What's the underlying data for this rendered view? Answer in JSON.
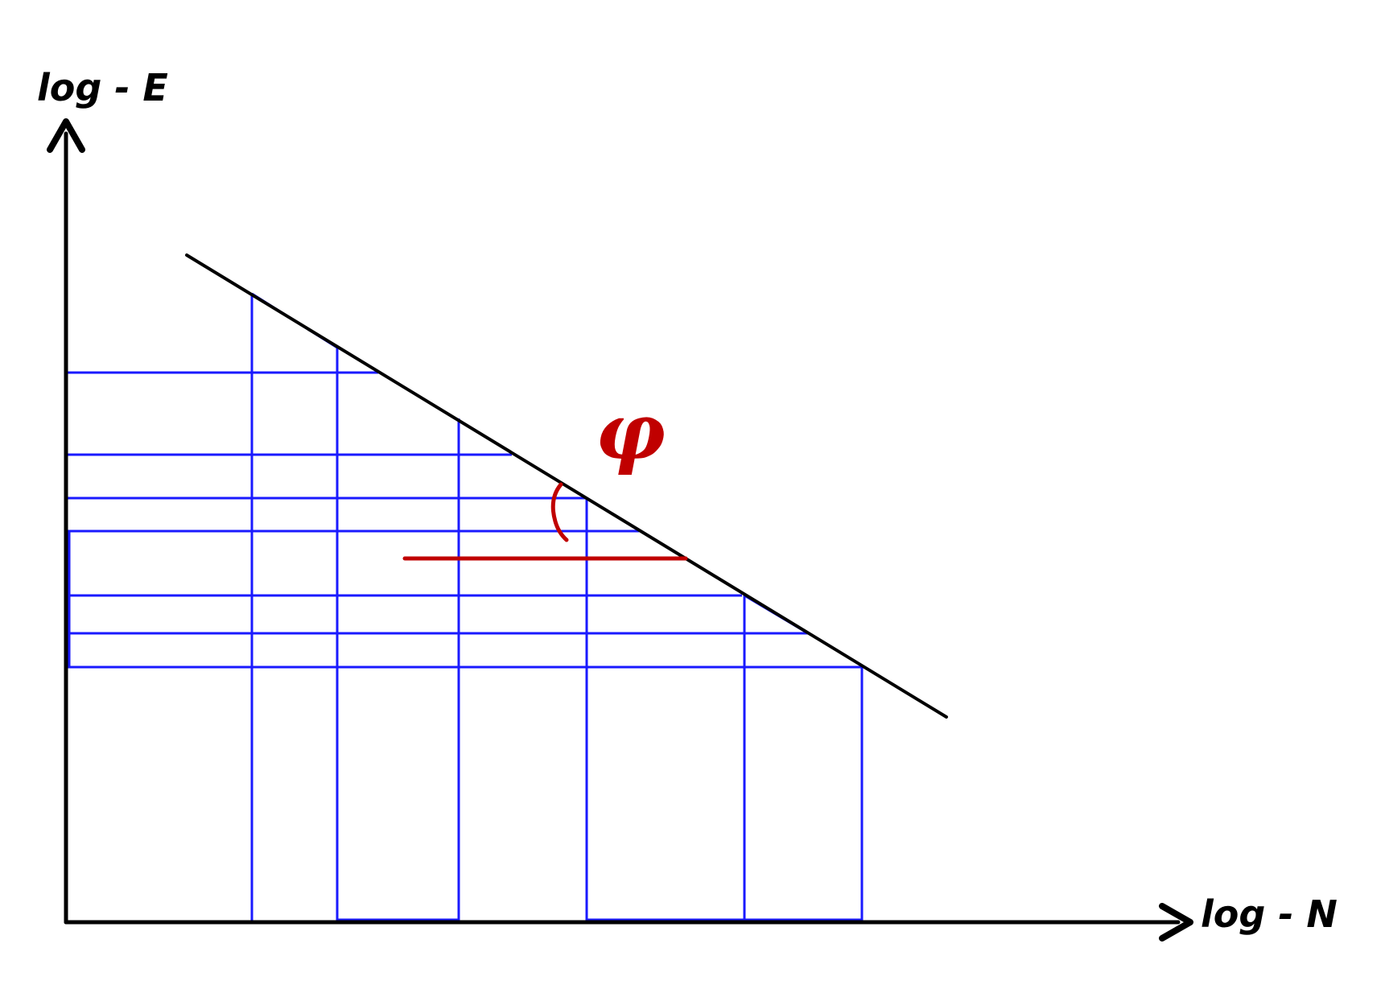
{
  "diagram": {
    "y_axis_label": "log - E",
    "x_axis_label": "log - N",
    "angle_label": "φ",
    "colors": {
      "axes": "#000000",
      "main_line": "#000000",
      "construction_lines": "#1a1aff",
      "angle_marker": "#c00000"
    }
  }
}
